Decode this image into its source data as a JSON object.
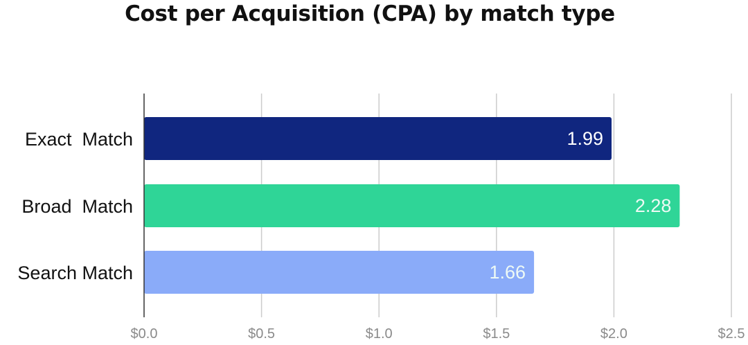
{
  "chart_data": {
    "type": "bar",
    "orientation": "horizontal",
    "title": "Cost per Acquisition (CPA) by match type",
    "xlabel": "",
    "ylabel": "",
    "categories": [
      "Exact  Match",
      "Broad  Match",
      "Search Match"
    ],
    "values": [
      1.99,
      2.28,
      1.66
    ],
    "data_labels": [
      "1.99",
      "2.28",
      "1.66"
    ],
    "colors": [
      "#10267f",
      "#2fd597",
      "#8aabf9"
    ],
    "xlim": [
      0,
      2.5
    ],
    "xticks": [
      0,
      0.5,
      1.0,
      1.5,
      2.0,
      2.5
    ],
    "xtick_labels": [
      "$0.0",
      "$0.5",
      "$1.0",
      "$1.5",
      "$2.0",
      "$2.5"
    ],
    "grid": true,
    "legend": "none"
  }
}
